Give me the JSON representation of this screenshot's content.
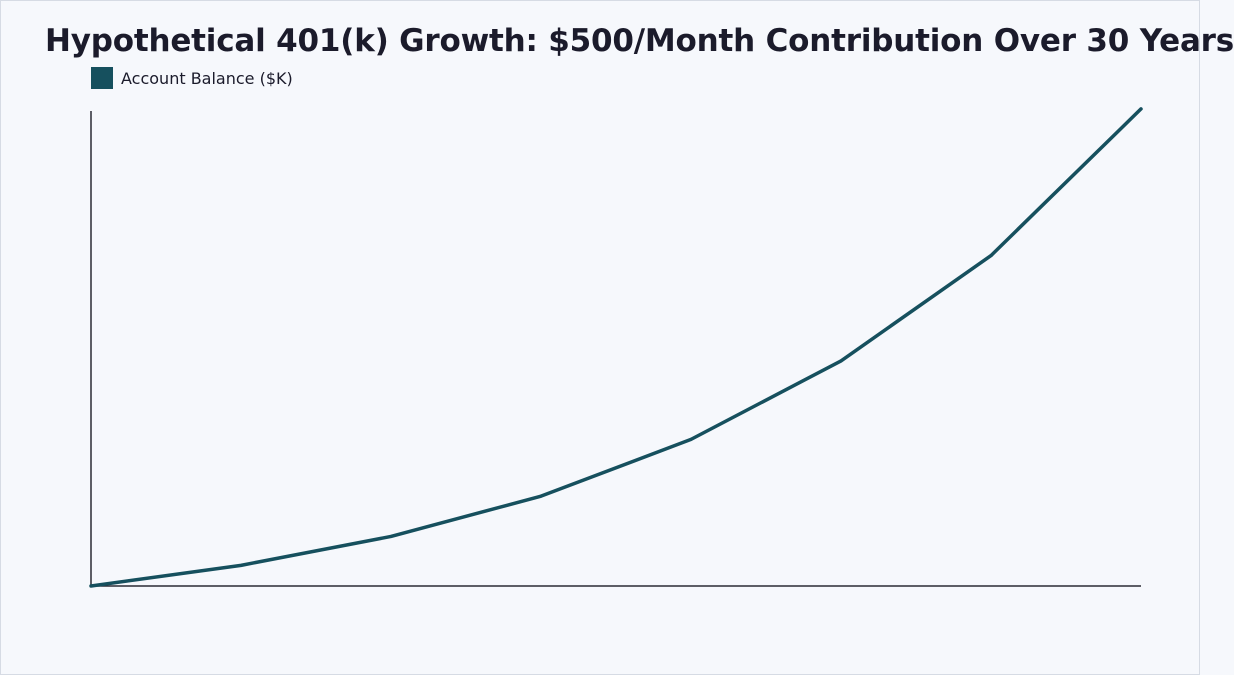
{
  "chart_data": {
    "type": "line",
    "title": "Hypothetical 401(k) Growth: $500/Month Contribution Over 30 Years",
    "xlabel": "",
    "ylabel": "",
    "x": [
      0,
      1,
      2,
      3,
      4,
      5,
      6,
      7
    ],
    "xlim": [
      0,
      7
    ],
    "ylim": [
      0,
      460
    ],
    "grid": false,
    "legend_position": "top-left",
    "series": [
      {
        "name": "Account Balance ($K)",
        "color": "#16505e",
        "values": [
          0,
          20,
          48,
          87,
          142,
          218,
          320,
          462
        ]
      }
    ]
  }
}
